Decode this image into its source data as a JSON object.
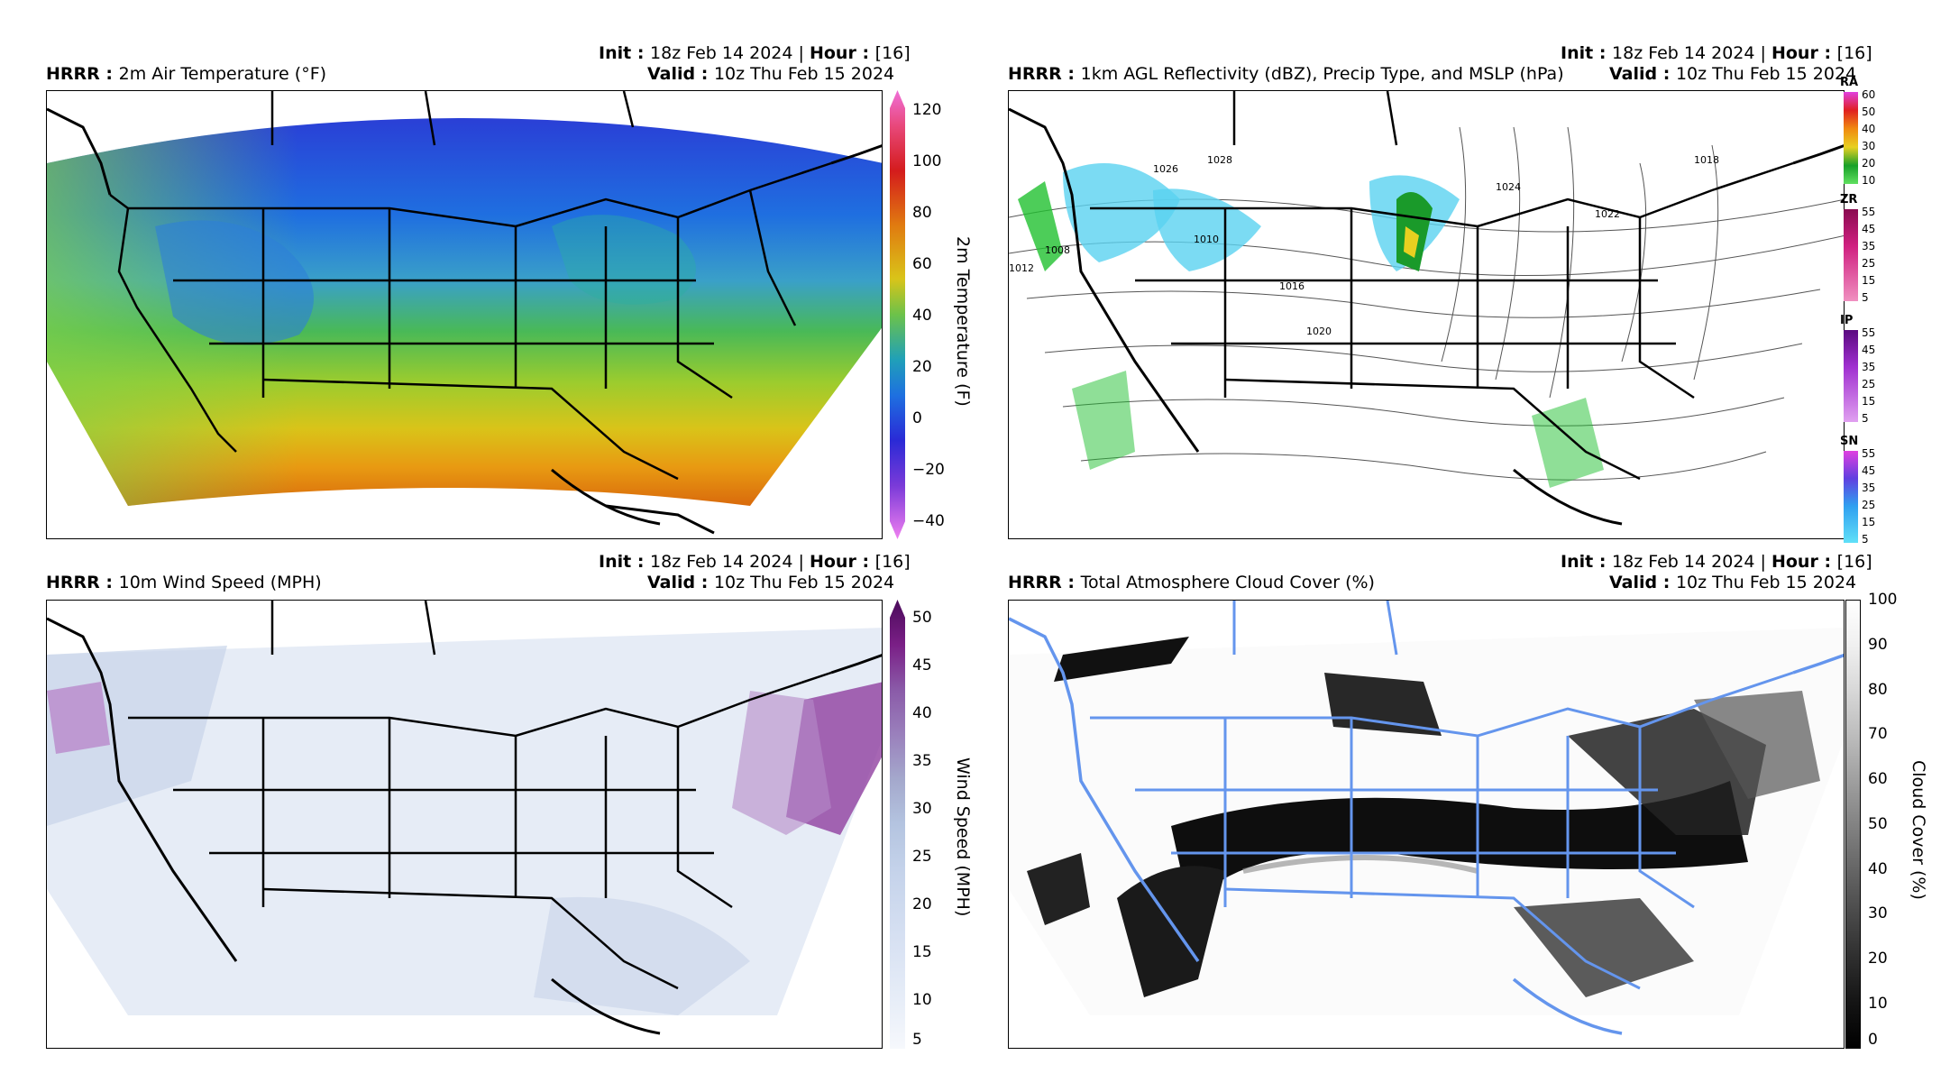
{
  "panels": [
    {
      "model": "HRRR",
      "title": "2m Air Temperature (°F)",
      "init_label": "Init",
      "init_value": "18z Feb 14 2024",
      "hour_label": "Hour",
      "hour_value": "[16]",
      "valid_label": "Valid",
      "valid_value": "10z Thu Feb 15 2024",
      "colorbar": {
        "label": "2m Temperature (F)",
        "ticks": [
          "120",
          "100",
          "80",
          "60",
          "40",
          "20",
          "0",
          "−20",
          "−40"
        ],
        "range": [
          -40,
          120
        ]
      }
    },
    {
      "model": "HRRR",
      "title": "1km AGL Reflectivity (dBZ), Precip Type, and MSLP (hPa)",
      "init_label": "Init",
      "init_value": "18z Feb 14 2024",
      "hour_label": "Hour",
      "hour_value": "[16]",
      "valid_label": "Valid",
      "valid_value": "10z Thu Feb 15 2024",
      "ptype_bars": [
        {
          "tag": "RA",
          "ticks": [
            "60",
            "50",
            "40",
            "30",
            "20",
            "10"
          ]
        },
        {
          "tag": "ZR",
          "ticks": [
            "55",
            "45",
            "35",
            "25",
            "15",
            "5"
          ]
        },
        {
          "tag": "IP",
          "ticks": [
            "55",
            "45",
            "35",
            "25",
            "15",
            "5"
          ]
        },
        {
          "tag": "SN",
          "ticks": [
            "55",
            "45",
            "35",
            "25",
            "15",
            "5"
          ]
        }
      ],
      "isobar_labels": [
        "1008",
        "1010",
        "1012",
        "1016",
        "1020",
        "1022",
        "1024",
        "1018",
        "1026",
        "1028"
      ]
    },
    {
      "model": "HRRR",
      "title": "10m Wind Speed (MPH)",
      "init_label": "Init",
      "init_value": "18z Feb 14 2024",
      "hour_label": "Hour",
      "hour_value": "[16]",
      "valid_label": "Valid",
      "valid_value": "10z Thu Feb 15 2024",
      "colorbar": {
        "label": "Wind Speed (MPH)",
        "ticks": [
          "50",
          "45",
          "40",
          "35",
          "30",
          "25",
          "20",
          "15",
          "10",
          "5"
        ],
        "range": [
          5,
          50
        ]
      }
    },
    {
      "model": "HRRR",
      "title": "Total Atmosphere Cloud Cover (%)",
      "init_label": "Init",
      "init_value": "18z Feb 14 2024",
      "hour_label": "Hour",
      "hour_value": "[16]",
      "valid_label": "Valid",
      "valid_value": "10z Thu Feb 15 2024",
      "colorbar": {
        "label": "Cloud Cover (%)",
        "ticks": [
          "100",
          "90",
          "80",
          "70",
          "60",
          "50",
          "40",
          "30",
          "20",
          "10",
          "0"
        ],
        "range": [
          0,
          100
        ]
      }
    }
  ],
  "colors": {
    "state_lines_dark": "#000000",
    "state_lines_blue": "#6495ed",
    "temp_cold": "#1e3fd0",
    "temp_mid": "#6cc24a",
    "temp_warm": "#e07a10",
    "wind_low": "#eef2fa",
    "wind_high": "#7a1f86"
  }
}
